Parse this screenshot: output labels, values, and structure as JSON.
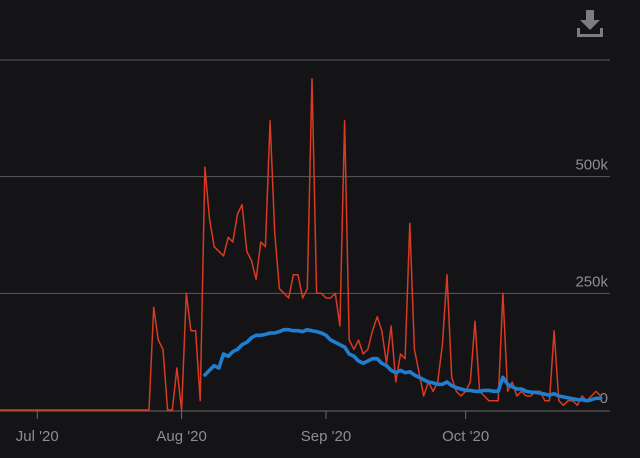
{
  "colors": {
    "background": "#141416",
    "grid": "#5a5a5e",
    "axis": "#6a6a6e",
    "tick_text": "#8e8e92",
    "series_daily": "#d83a22",
    "series_avg": "#1e7fd0",
    "icon": "#7c7c80"
  },
  "toolbar": {
    "download_icon": "download-icon"
  },
  "chart_data": {
    "type": "line",
    "x_range": [
      "2020-06-23",
      "2020-11-01"
    ],
    "ylim": [
      0,
      750000
    ],
    "y_ticks": [
      {
        "value": 0,
        "label": "0"
      },
      {
        "value": 250000,
        "label": "250k"
      },
      {
        "value": 500000,
        "label": "500k"
      },
      {
        "value": 750000,
        "label": ""
      }
    ],
    "x_ticks": [
      {
        "date": "2020-07-01",
        "label": "Jul '20"
      },
      {
        "date": "2020-08-01",
        "label": "Aug '20"
      },
      {
        "date": "2020-09-01",
        "label": "Sep '20"
      },
      {
        "date": "2020-10-01",
        "label": "Oct '20"
      }
    ],
    "grid": true,
    "legend": "none",
    "series": [
      {
        "color": "#d83a22",
        "style": "thin",
        "points": [
          [
            "2020-06-23",
            0
          ],
          [
            "2020-07-05",
            0
          ],
          [
            "2020-07-15",
            0
          ],
          [
            "2020-07-25",
            0
          ],
          [
            "2020-07-26",
            220000
          ],
          [
            "2020-07-27",
            150000
          ],
          [
            "2020-07-28",
            130000
          ],
          [
            "2020-07-29",
            0
          ],
          [
            "2020-07-30",
            0
          ],
          [
            "2020-07-31",
            90000
          ],
          [
            "2020-08-01",
            0
          ],
          [
            "2020-08-02",
            250000
          ],
          [
            "2020-08-03",
            170000
          ],
          [
            "2020-08-04",
            170000
          ],
          [
            "2020-08-05",
            20000
          ],
          [
            "2020-08-06",
            520000
          ],
          [
            "2020-08-07",
            410000
          ],
          [
            "2020-08-08",
            350000
          ],
          [
            "2020-08-09",
            340000
          ],
          [
            "2020-08-10",
            330000
          ],
          [
            "2020-08-11",
            370000
          ],
          [
            "2020-08-12",
            360000
          ],
          [
            "2020-08-13",
            420000
          ],
          [
            "2020-08-14",
            440000
          ],
          [
            "2020-08-15",
            340000
          ],
          [
            "2020-08-16",
            320000
          ],
          [
            "2020-08-17",
            280000
          ],
          [
            "2020-08-18",
            360000
          ],
          [
            "2020-08-19",
            350000
          ],
          [
            "2020-08-20",
            620000
          ],
          [
            "2020-08-21",
            380000
          ],
          [
            "2020-08-22",
            260000
          ],
          [
            "2020-08-23",
            250000
          ],
          [
            "2020-08-24",
            240000
          ],
          [
            "2020-08-25",
            290000
          ],
          [
            "2020-08-26",
            290000
          ],
          [
            "2020-08-27",
            240000
          ],
          [
            "2020-08-28",
            260000
          ],
          [
            "2020-08-29",
            710000
          ],
          [
            "2020-08-30",
            250000
          ],
          [
            "2020-08-31",
            250000
          ],
          [
            "2020-09-01",
            240000
          ],
          [
            "2020-09-02",
            240000
          ],
          [
            "2020-09-03",
            250000
          ],
          [
            "2020-09-04",
            180000
          ],
          [
            "2020-09-05",
            620000
          ],
          [
            "2020-09-06",
            150000
          ],
          [
            "2020-09-07",
            130000
          ],
          [
            "2020-09-08",
            150000
          ],
          [
            "2020-09-09",
            120000
          ],
          [
            "2020-09-10",
            130000
          ],
          [
            "2020-09-11",
            170000
          ],
          [
            "2020-09-12",
            200000
          ],
          [
            "2020-09-13",
            170000
          ],
          [
            "2020-09-14",
            100000
          ],
          [
            "2020-09-15",
            180000
          ],
          [
            "2020-09-16",
            60000
          ],
          [
            "2020-09-17",
            120000
          ],
          [
            "2020-09-18",
            110000
          ],
          [
            "2020-09-19",
            400000
          ],
          [
            "2020-09-20",
            130000
          ],
          [
            "2020-09-21",
            80000
          ],
          [
            "2020-09-22",
            30000
          ],
          [
            "2020-09-23",
            60000
          ],
          [
            "2020-09-24",
            40000
          ],
          [
            "2020-09-25",
            60000
          ],
          [
            "2020-09-26",
            140000
          ],
          [
            "2020-09-27",
            290000
          ],
          [
            "2020-09-28",
            70000
          ],
          [
            "2020-09-29",
            40000
          ],
          [
            "2020-09-30",
            30000
          ],
          [
            "2020-10-01",
            40000
          ],
          [
            "2020-10-02",
            60000
          ],
          [
            "2020-10-03",
            190000
          ],
          [
            "2020-10-04",
            40000
          ],
          [
            "2020-10-05",
            30000
          ],
          [
            "2020-10-06",
            20000
          ],
          [
            "2020-10-07",
            20000
          ],
          [
            "2020-10-08",
            20000
          ],
          [
            "2020-10-09",
            250000
          ],
          [
            "2020-10-10",
            40000
          ],
          [
            "2020-10-11",
            60000
          ],
          [
            "2020-10-12",
            30000
          ],
          [
            "2020-10-13",
            40000
          ],
          [
            "2020-10-14",
            30000
          ],
          [
            "2020-10-15",
            30000
          ],
          [
            "2020-10-16",
            40000
          ],
          [
            "2020-10-17",
            40000
          ],
          [
            "2020-10-18",
            20000
          ],
          [
            "2020-10-19",
            20000
          ],
          [
            "2020-10-20",
            170000
          ],
          [
            "2020-10-21",
            20000
          ],
          [
            "2020-10-22",
            10000
          ],
          [
            "2020-10-23",
            20000
          ],
          [
            "2020-10-24",
            20000
          ],
          [
            "2020-10-25",
            10000
          ],
          [
            "2020-10-26",
            30000
          ],
          [
            "2020-10-27",
            20000
          ],
          [
            "2020-10-28",
            30000
          ],
          [
            "2020-10-29",
            40000
          ],
          [
            "2020-10-30",
            30000
          ]
        ]
      },
      {
        "color": "#1e7fd0",
        "style": "thick",
        "points": [
          [
            "2020-08-06",
            75000
          ],
          [
            "2020-08-07",
            85000
          ],
          [
            "2020-08-08",
            95000
          ],
          [
            "2020-08-09",
            90000
          ],
          [
            "2020-08-10",
            120000
          ],
          [
            "2020-08-11",
            115000
          ],
          [
            "2020-08-12",
            125000
          ],
          [
            "2020-08-13",
            130000
          ],
          [
            "2020-08-14",
            140000
          ],
          [
            "2020-08-15",
            145000
          ],
          [
            "2020-08-16",
            155000
          ],
          [
            "2020-08-17",
            160000
          ],
          [
            "2020-08-18",
            160000
          ],
          [
            "2020-08-19",
            162000
          ],
          [
            "2020-08-20",
            165000
          ],
          [
            "2020-08-21",
            165000
          ],
          [
            "2020-08-22",
            168000
          ],
          [
            "2020-08-23",
            172000
          ],
          [
            "2020-08-24",
            172000
          ],
          [
            "2020-08-25",
            170000
          ],
          [
            "2020-08-26",
            170000
          ],
          [
            "2020-08-27",
            168000
          ],
          [
            "2020-08-28",
            172000
          ],
          [
            "2020-08-29",
            170000
          ],
          [
            "2020-08-30",
            168000
          ],
          [
            "2020-08-31",
            165000
          ],
          [
            "2020-09-01",
            160000
          ],
          [
            "2020-09-02",
            150000
          ],
          [
            "2020-09-03",
            145000
          ],
          [
            "2020-09-04",
            140000
          ],
          [
            "2020-09-05",
            135000
          ],
          [
            "2020-09-06",
            120000
          ],
          [
            "2020-09-07",
            115000
          ],
          [
            "2020-09-08",
            105000
          ],
          [
            "2020-09-09",
            100000
          ],
          [
            "2020-09-10",
            105000
          ],
          [
            "2020-09-11",
            110000
          ],
          [
            "2020-09-12",
            110000
          ],
          [
            "2020-09-13",
            100000
          ],
          [
            "2020-09-14",
            95000
          ],
          [
            "2020-09-15",
            85000
          ],
          [
            "2020-09-16",
            80000
          ],
          [
            "2020-09-17",
            85000
          ],
          [
            "2020-09-18",
            80000
          ],
          [
            "2020-09-19",
            82000
          ],
          [
            "2020-09-20",
            75000
          ],
          [
            "2020-09-21",
            70000
          ],
          [
            "2020-09-22",
            65000
          ],
          [
            "2020-09-23",
            60000
          ],
          [
            "2020-09-24",
            58000
          ],
          [
            "2020-09-25",
            55000
          ],
          [
            "2020-09-26",
            55000
          ],
          [
            "2020-09-27",
            60000
          ],
          [
            "2020-09-28",
            52000
          ],
          [
            "2020-09-29",
            48000
          ],
          [
            "2020-09-30",
            45000
          ],
          [
            "2020-10-01",
            42000
          ],
          [
            "2020-10-02",
            42000
          ],
          [
            "2020-10-03",
            40000
          ],
          [
            "2020-10-04",
            40000
          ],
          [
            "2020-10-05",
            42000
          ],
          [
            "2020-10-06",
            42000
          ],
          [
            "2020-10-07",
            40000
          ],
          [
            "2020-10-08",
            40000
          ],
          [
            "2020-10-09",
            70000
          ],
          [
            "2020-10-10",
            55000
          ],
          [
            "2020-10-11",
            50000
          ],
          [
            "2020-10-12",
            45000
          ],
          [
            "2020-10-13",
            45000
          ],
          [
            "2020-10-14",
            40000
          ],
          [
            "2020-10-15",
            38000
          ],
          [
            "2020-10-16",
            38000
          ],
          [
            "2020-10-17",
            36000
          ],
          [
            "2020-10-18",
            34000
          ],
          [
            "2020-10-19",
            32000
          ],
          [
            "2020-10-20",
            35000
          ],
          [
            "2020-10-21",
            30000
          ],
          [
            "2020-10-22",
            28000
          ],
          [
            "2020-10-23",
            26000
          ],
          [
            "2020-10-24",
            24000
          ],
          [
            "2020-10-25",
            22000
          ],
          [
            "2020-10-26",
            22000
          ],
          [
            "2020-10-27",
            20000
          ],
          [
            "2020-10-28",
            22000
          ],
          [
            "2020-10-29",
            25000
          ],
          [
            "2020-10-30",
            25000
          ]
        ]
      }
    ]
  }
}
